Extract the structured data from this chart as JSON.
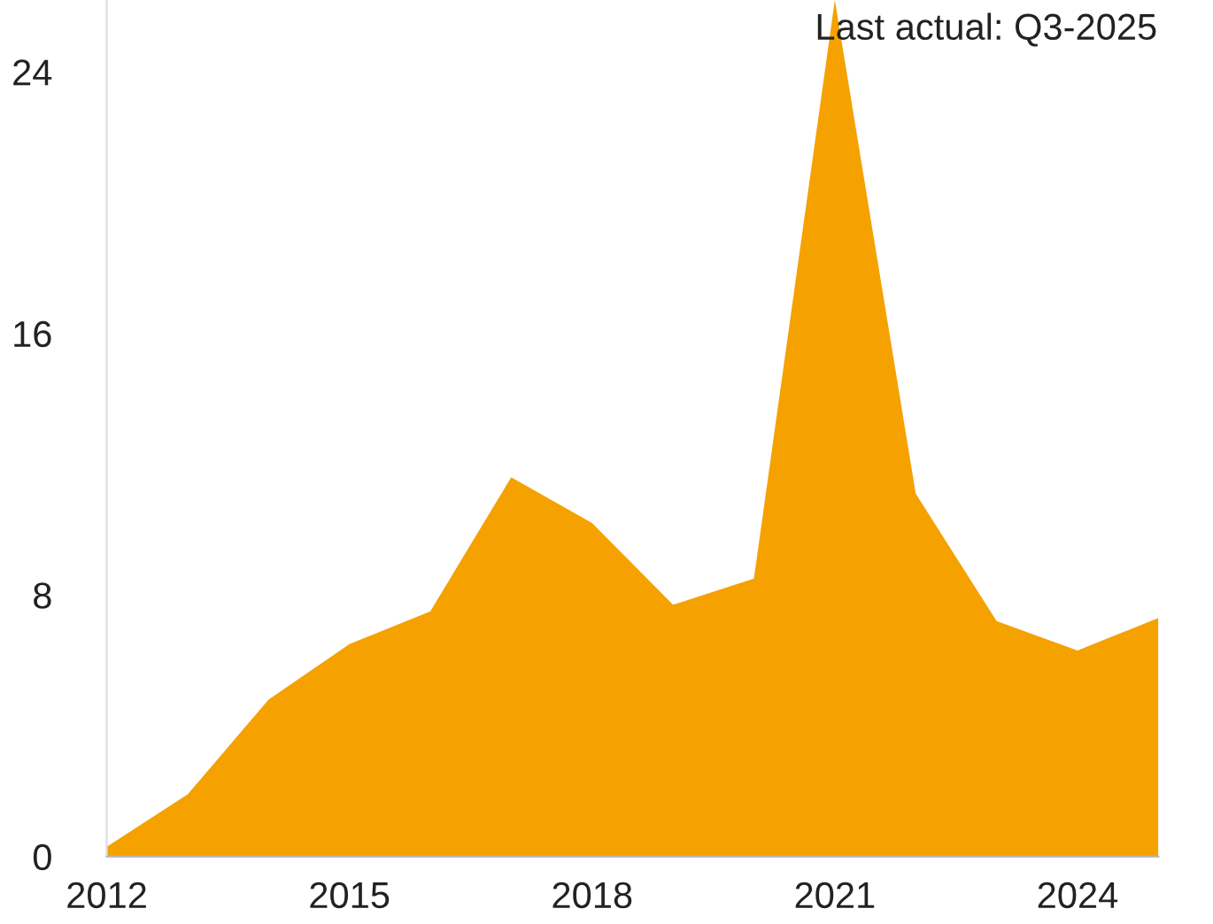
{
  "chart_data": {
    "type": "area",
    "x": [
      2012,
      2013,
      2014,
      2015,
      2016,
      2017,
      2018,
      2019,
      2020,
      2021,
      2022,
      2023,
      2024,
      2025
    ],
    "series": [
      {
        "color": "#f5a100",
        "values": [
          0.3,
          1.9,
          4.8,
          6.5,
          7.5,
          11.6,
          10.2,
          7.7,
          8.5,
          26.2,
          11.1,
          7.2,
          6.3,
          7.3
        ]
      }
    ],
    "xlim": [
      2012,
      2025
    ],
    "xticks": [
      2012,
      2015,
      2018,
      2021,
      2024
    ],
    "ylim": [
      0,
      26.2
    ],
    "yticks": [
      0,
      8,
      16,
      24
    ],
    "grid": false,
    "legend": false,
    "annotations": [
      "Last actual: Q3-2025"
    ]
  }
}
